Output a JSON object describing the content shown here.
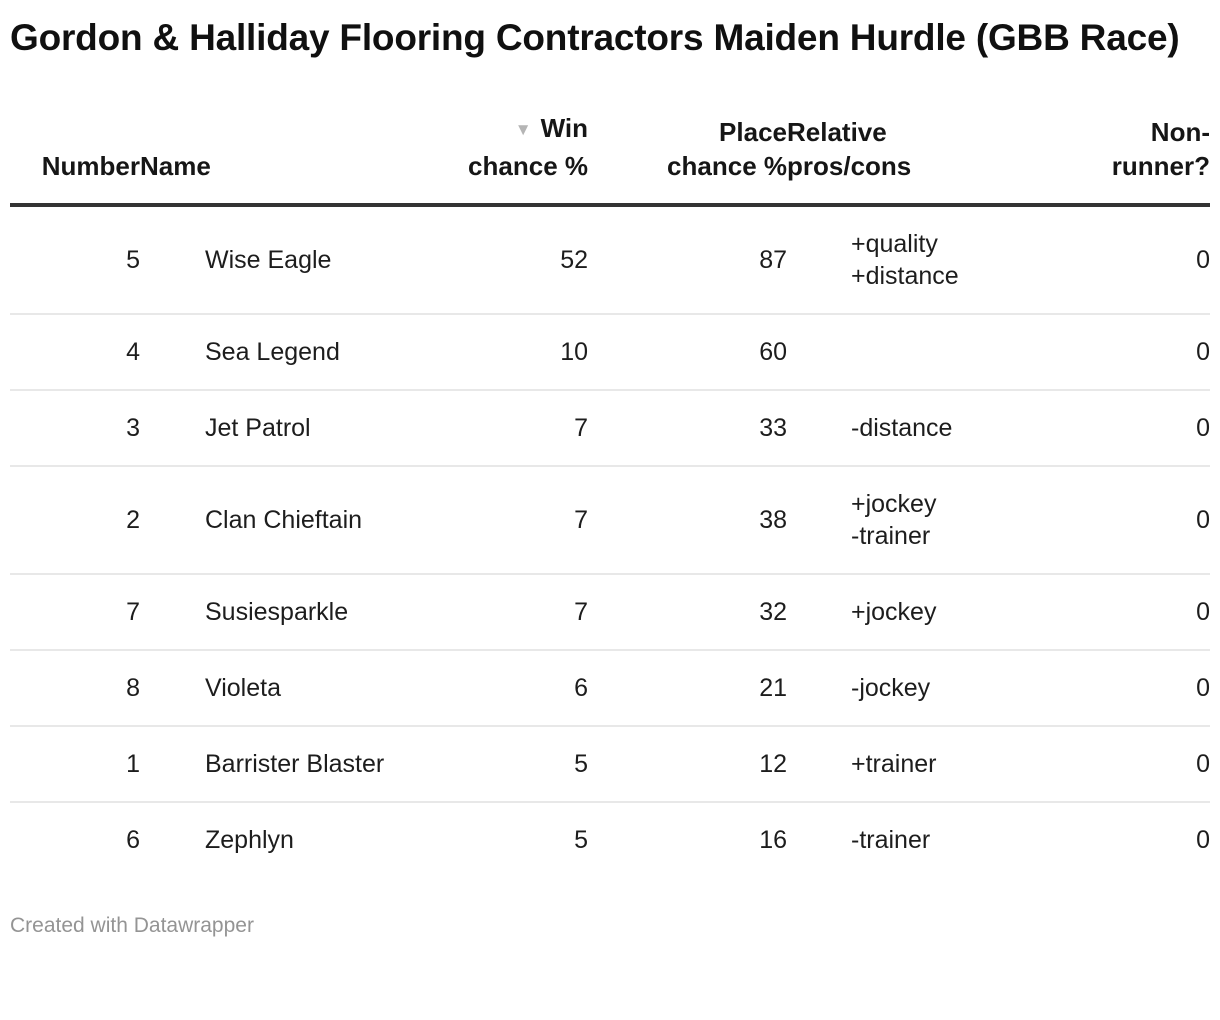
{
  "title": "Gordon & Halliday Flooring Contractors Maiden Hurdle (GBB Race)",
  "icons": {
    "sort_desc": "▼"
  },
  "colors": {
    "header-rule": "#333333",
    "separator": "#e8e8e8",
    "sort-arrow": "#b5b5b5",
    "muted": "#949494",
    "title-text": "#101010",
    "header-text": "#161616",
    "body-text": "#1d1d1d"
  },
  "table": {
    "columns": [
      {
        "label": "Number",
        "align": "right"
      },
      {
        "label": "Name",
        "align": "left"
      },
      {
        "label": "Win chance %",
        "align": "right",
        "sorted": "desc"
      },
      {
        "label": "Place chance %",
        "align": "right"
      },
      {
        "label": "Relative pros/cons",
        "align": "left"
      },
      {
        "label": "Non-runner?",
        "align": "right"
      }
    ],
    "rows": [
      {
        "number": "5",
        "name": "Wise Eagle",
        "win": "52",
        "place": "87",
        "pros_cons": [
          "+quality",
          "+distance"
        ],
        "non_runner": "0"
      },
      {
        "number": "4",
        "name": "Sea Legend",
        "win": "10",
        "place": "60",
        "pros_cons": [],
        "non_runner": "0"
      },
      {
        "number": "3",
        "name": "Jet Patrol",
        "win": "7",
        "place": "33",
        "pros_cons": [
          "-distance"
        ],
        "non_runner": "0"
      },
      {
        "number": "2",
        "name": "Clan Chieftain",
        "win": "7",
        "place": "38",
        "pros_cons": [
          "+jockey",
          "-trainer"
        ],
        "non_runner": "0"
      },
      {
        "number": "7",
        "name": "Susiesparkle",
        "win": "7",
        "place": "32",
        "pros_cons": [
          "+jockey"
        ],
        "non_runner": "0"
      },
      {
        "number": "8",
        "name": "Violeta",
        "win": "6",
        "place": "21",
        "pros_cons": [
          "-jockey"
        ],
        "non_runner": "0"
      },
      {
        "number": "1",
        "name": "Barrister Blaster",
        "win": "5",
        "place": "12",
        "pros_cons": [
          "+trainer"
        ],
        "non_runner": "0"
      },
      {
        "number": "6",
        "name": "Zephlyn",
        "win": "5",
        "place": "16",
        "pros_cons": [
          "-trainer"
        ],
        "non_runner": "0"
      }
    ]
  },
  "footer": {
    "attribution": "Created with Datawrapper"
  }
}
